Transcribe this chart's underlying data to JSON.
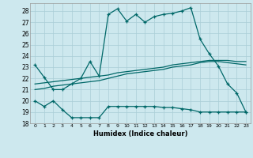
{
  "xlabel": "Humidex (Indice chaleur)",
  "background_color": "#cde8ee",
  "grid_color": "#aacdd6",
  "line_color": "#006868",
  "xlim": [
    -0.5,
    23.5
  ],
  "ylim": [
    18,
    28.7
  ],
  "yticks": [
    18,
    19,
    20,
    21,
    22,
    23,
    24,
    25,
    26,
    27,
    28
  ],
  "xticks": [
    0,
    1,
    2,
    3,
    4,
    5,
    6,
    7,
    8,
    9,
    10,
    11,
    12,
    13,
    14,
    15,
    16,
    17,
    18,
    19,
    20,
    21,
    22,
    23
  ],
  "line1_x": [
    0,
    1,
    2,
    3,
    4,
    5,
    6,
    7,
    8,
    9,
    10,
    11,
    12,
    13,
    14,
    15,
    16,
    17,
    18,
    19,
    20,
    21,
    22,
    23
  ],
  "line1_y": [
    23.2,
    22.1,
    21.0,
    21.0,
    21.5,
    22.0,
    23.5,
    22.2,
    27.7,
    28.2,
    27.1,
    27.7,
    27.0,
    27.5,
    27.7,
    27.8,
    28.0,
    28.3,
    25.5,
    24.2,
    23.1,
    21.5,
    20.7,
    19.0
  ],
  "line2_x": [
    0,
    1,
    2,
    3,
    4,
    5,
    6,
    7,
    8,
    9,
    10,
    11,
    12,
    13,
    14,
    15,
    16,
    17,
    18,
    19,
    20,
    21,
    22,
    23
  ],
  "line2_y": [
    21.0,
    21.1,
    21.3,
    21.4,
    21.5,
    21.6,
    21.7,
    21.8,
    22.0,
    22.2,
    22.4,
    22.5,
    22.6,
    22.7,
    22.8,
    23.0,
    23.1,
    23.2,
    23.4,
    23.5,
    23.5,
    23.4,
    23.3,
    23.2
  ],
  "line3_x": [
    0,
    1,
    2,
    3,
    4,
    5,
    6,
    7,
    8,
    9,
    10,
    11,
    12,
    13,
    14,
    15,
    16,
    17,
    18,
    19,
    20,
    21,
    22,
    23
  ],
  "line3_y": [
    21.5,
    21.6,
    21.7,
    21.8,
    21.9,
    22.0,
    22.1,
    22.2,
    22.3,
    22.5,
    22.6,
    22.7,
    22.8,
    22.9,
    23.0,
    23.2,
    23.3,
    23.4,
    23.5,
    23.6,
    23.6,
    23.6,
    23.5,
    23.5
  ],
  "line4_x": [
    0,
    1,
    2,
    3,
    4,
    5,
    6,
    7,
    8,
    9,
    10,
    11,
    12,
    13,
    14,
    15,
    16,
    17,
    18,
    19,
    20,
    21,
    22,
    23
  ],
  "line4_y": [
    20.0,
    19.5,
    20.0,
    19.2,
    18.5,
    18.5,
    18.5,
    18.5,
    19.5,
    19.5,
    19.5,
    19.5,
    19.5,
    19.5,
    19.4,
    19.4,
    19.3,
    19.2,
    19.0,
    19.0,
    19.0,
    19.0,
    19.0,
    19.0
  ]
}
